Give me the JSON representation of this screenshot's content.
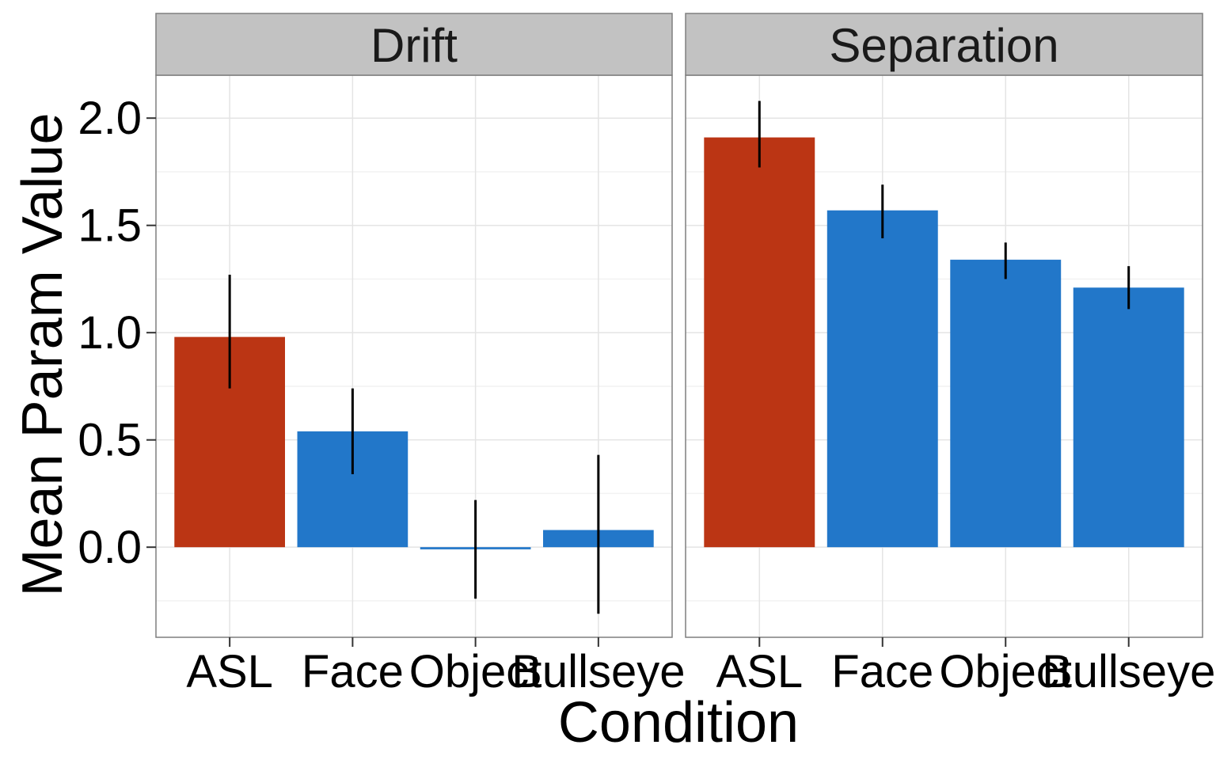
{
  "chart_data": {
    "type": "bar",
    "xlabel": "Condition",
    "ylabel": "Mean Param Value",
    "ylim": [
      -0.42,
      2.2
    ],
    "yticks": [
      0.0,
      0.5,
      1.0,
      1.5,
      2.0
    ],
    "ytick_labels": [
      "0.0",
      "0.5",
      "1.0",
      "1.5",
      "2.0"
    ],
    "grid": true,
    "categories": [
      "ASL",
      "Face",
      "Object",
      "Bullseye"
    ],
    "colors": {
      "highlight": "#bb3514",
      "default": "#2277c9",
      "error_bar": "#000000",
      "strip_bg": "#c2c2c2"
    },
    "facets": [
      {
        "name": "Drift",
        "values": [
          0.98,
          0.54,
          -0.01,
          0.08
        ],
        "error_low": [
          0.74,
          0.34,
          -0.24,
          -0.31
        ],
        "error_high": [
          1.27,
          0.74,
          0.22,
          0.43
        ],
        "highlight": [
          true,
          false,
          false,
          false
        ]
      },
      {
        "name": "Separation",
        "values": [
          1.91,
          1.57,
          1.34,
          1.21
        ],
        "error_low": [
          1.77,
          1.44,
          1.25,
          1.11
        ],
        "error_high": [
          2.08,
          1.69,
          1.42,
          1.31
        ],
        "highlight": [
          true,
          false,
          false,
          false
        ]
      }
    ]
  }
}
